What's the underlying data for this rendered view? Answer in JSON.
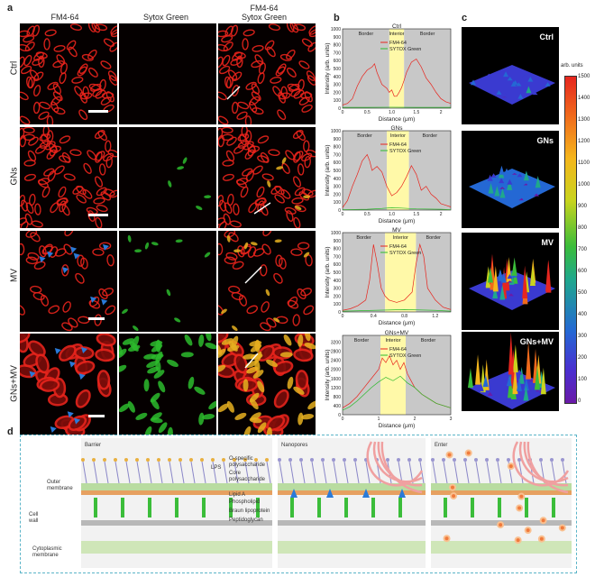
{
  "panels": {
    "a": "a",
    "b": "b",
    "c": "c",
    "d": "d"
  },
  "columns": [
    "FM4-64",
    "Sytox Green",
    "FM4-64\nSytox Green"
  ],
  "rows": [
    "Ctrl",
    "GNs",
    "MV",
    "GNs+MV"
  ],
  "colors": {
    "fm464": "#e8241c",
    "sytox": "#2dbb2d",
    "border_region": "#c8c8c8",
    "interior_region": "#fff9a8",
    "arrow_blue": "#2a7ad8"
  },
  "chart_data": [
    {
      "type": "line",
      "title": "Ctrl",
      "xlabel": "Distance (μm)",
      "ylabel": "Intensity (arb. units)",
      "xlim": [
        0,
        2.2
      ],
      "ylim": [
        0,
        1000
      ],
      "xticks": [
        0,
        0.5,
        1.0,
        1.5,
        2.0
      ],
      "yticks": [
        0,
        100,
        200,
        300,
        400,
        500,
        600,
        700,
        800,
        900,
        1000
      ],
      "regions": [
        {
          "label": "Border",
          "from": 0,
          "to": 0.95
        },
        {
          "label": "Interior",
          "from": 0.95,
          "to": 1.25
        },
        {
          "label": "Border",
          "from": 1.25,
          "to": 2.2
        }
      ],
      "series": [
        {
          "name": "FM4-64",
          "x": [
            0,
            0.1,
            0.2,
            0.3,
            0.4,
            0.5,
            0.6,
            0.65,
            0.7,
            0.8,
            0.9,
            0.95,
            1.0,
            1.05,
            1.1,
            1.15,
            1.2,
            1.25,
            1.3,
            1.4,
            1.5,
            1.6,
            1.7,
            1.8,
            1.9,
            2.0,
            2.1,
            2.2
          ],
          "y": [
            40,
            60,
            120,
            280,
            400,
            480,
            520,
            560,
            450,
            300,
            250,
            200,
            230,
            150,
            150,
            200,
            260,
            350,
            450,
            580,
            620,
            520,
            380,
            300,
            200,
            120,
            80,
            60
          ]
        },
        {
          "name": "SYTOX Green",
          "x": [
            0,
            0.5,
            1.0,
            1.5,
            2.0,
            2.2
          ],
          "y": [
            10,
            10,
            12,
            10,
            10,
            10
          ]
        }
      ],
      "legend": "top-center"
    },
    {
      "type": "line",
      "title": "GNs",
      "xlabel": "Distance (μm)",
      "ylabel": "Intensity (arb. units)",
      "xlim": [
        0,
        2.2
      ],
      "ylim": [
        0,
        1000
      ],
      "xticks": [
        0,
        0.5,
        1.0,
        1.5,
        2.0
      ],
      "yticks": [
        0,
        100,
        200,
        300,
        400,
        500,
        600,
        700,
        800,
        900,
        1000
      ],
      "regions": [
        {
          "label": "Border",
          "from": 0,
          "to": 0.9
        },
        {
          "label": "Interior",
          "from": 0.9,
          "to": 1.35
        },
        {
          "label": "Border",
          "from": 1.35,
          "to": 2.2
        }
      ],
      "series": [
        {
          "name": "FM4-64",
          "x": [
            0,
            0.1,
            0.2,
            0.3,
            0.4,
            0.5,
            0.55,
            0.6,
            0.7,
            0.8,
            0.9,
            1.0,
            1.1,
            1.2,
            1.3,
            1.4,
            1.5,
            1.6,
            1.7,
            1.8,
            1.9,
            2.0,
            2.1,
            2.2
          ],
          "y": [
            30,
            120,
            300,
            450,
            620,
            700,
            620,
            500,
            550,
            480,
            300,
            180,
            220,
            300,
            420,
            560,
            450,
            250,
            300,
            200,
            150,
            80,
            60,
            40
          ]
        },
        {
          "name": "SYTOX Green",
          "x": [
            0,
            0.5,
            0.8,
            1.0,
            1.2,
            1.5,
            2.0,
            2.2
          ],
          "y": [
            5,
            10,
            20,
            30,
            25,
            15,
            10,
            5
          ]
        }
      ],
      "legend": "top-center"
    },
    {
      "type": "line",
      "title": "MV",
      "xlabel": "Distance (μm)",
      "ylabel": "Intensity (arb. units)",
      "xlim": [
        0,
        1.4
      ],
      "ylim": [
        0,
        1000
      ],
      "xticks": [
        0,
        0.4,
        0.8,
        1.2
      ],
      "yticks": [
        0,
        100,
        200,
        300,
        400,
        500,
        600,
        700,
        800,
        900,
        1000
      ],
      "regions": [
        {
          "label": "Border",
          "from": 0,
          "to": 0.55
        },
        {
          "label": "Interior",
          "from": 0.55,
          "to": 0.95
        },
        {
          "label": "Border",
          "from": 0.95,
          "to": 1.4
        }
      ],
      "series": [
        {
          "name": "FM4-64",
          "x": [
            0,
            0.1,
            0.2,
            0.3,
            0.35,
            0.4,
            0.45,
            0.5,
            0.55,
            0.6,
            0.7,
            0.8,
            0.9,
            0.95,
            1.0,
            1.05,
            1.1,
            1.2,
            1.3,
            1.4
          ],
          "y": [
            20,
            40,
            80,
            150,
            400,
            850,
            600,
            300,
            200,
            150,
            120,
            150,
            250,
            600,
            850,
            700,
            300,
            150,
            60,
            30
          ]
        },
        {
          "name": "SYTOX Green",
          "x": [
            0,
            0.4,
            0.8,
            1.2,
            1.4
          ],
          "y": [
            10,
            20,
            30,
            20,
            10
          ]
        }
      ],
      "legend": "top-center"
    },
    {
      "type": "line",
      "title": "GNs+MV",
      "xlabel": "Distance (μm)",
      "ylabel": "Intensity (arb. units)",
      "xlim": [
        0,
        3
      ],
      "ylim": [
        0,
        3500
      ],
      "xticks": [
        0,
        1,
        2,
        3
      ],
      "yticks": [
        0,
        400,
        800,
        1200,
        1600,
        2000,
        2400,
        2800,
        3200
      ],
      "regions": [
        {
          "label": "Border",
          "from": 0,
          "to": 1.05
        },
        {
          "label": "Interior",
          "from": 1.05,
          "to": 1.75
        },
        {
          "label": "Border",
          "from": 1.75,
          "to": 3
        }
      ],
      "series": [
        {
          "name": "FM4-64",
          "x": [
            0,
            0.2,
            0.4,
            0.6,
            0.8,
            1.0,
            1.1,
            1.2,
            1.3,
            1.4,
            1.5,
            1.6,
            1.7,
            1.8,
            1.9,
            2.0,
            2.2,
            2.4,
            2.6,
            2.8,
            3.0
          ],
          "y": [
            300,
            500,
            800,
            1200,
            1600,
            2000,
            2500,
            2300,
            2600,
            2200,
            2400,
            2000,
            2300,
            1800,
            1500,
            1200,
            900,
            700,
            500,
            400,
            300
          ]
        },
        {
          "name": "SYTOX Green",
          "x": [
            0,
            0.2,
            0.4,
            0.6,
            0.8,
            1.0,
            1.2,
            1.4,
            1.6,
            1.8,
            2.0,
            2.2,
            2.4,
            2.6,
            2.8,
            3.0
          ],
          "y": [
            200,
            350,
            600,
            900,
            1200,
            1450,
            1650,
            1500,
            1700,
            1400,
            1200,
            900,
            700,
            500,
            400,
            300
          ]
        }
      ],
      "legend": "top-center"
    }
  ],
  "plot_text": {
    "border": "Border",
    "interior": "Interior",
    "fm": "FM4-64",
    "sytox": "SYTOX Green",
    "xlabel": "Distance (μm)",
    "ylabel": "Intensity (arb. units)",
    "titles": [
      "Ctrl",
      "GNs",
      "MV",
      "GNs+MV"
    ]
  },
  "surfaces": [
    "Ctrl",
    "GNs",
    "MV",
    "GNs+MV"
  ],
  "colorbar": {
    "title": "arb. units",
    "ticks": [
      "1500",
      "1400",
      "1300",
      "1200",
      "1100",
      "1000",
      "900",
      "800",
      "700",
      "600",
      "500",
      "400",
      "300",
      "200",
      "100",
      "0"
    ]
  },
  "schematic": {
    "stages": [
      "Barrier",
      "Nanopores",
      "Enter"
    ],
    "labels_left": {
      "outer_membrane": "Outer\nmembrane",
      "cell_wall": "Cell\nwall",
      "cytoplasmic": "Cytoplasmic\nmembrane"
    },
    "labels_right": [
      "O-specific\npolysaccharide",
      "Core\npolysaccharide",
      "LPS",
      "Lipid A",
      "Phospholipid",
      "Braun lipoprotein",
      "Peptidoglycan"
    ]
  }
}
